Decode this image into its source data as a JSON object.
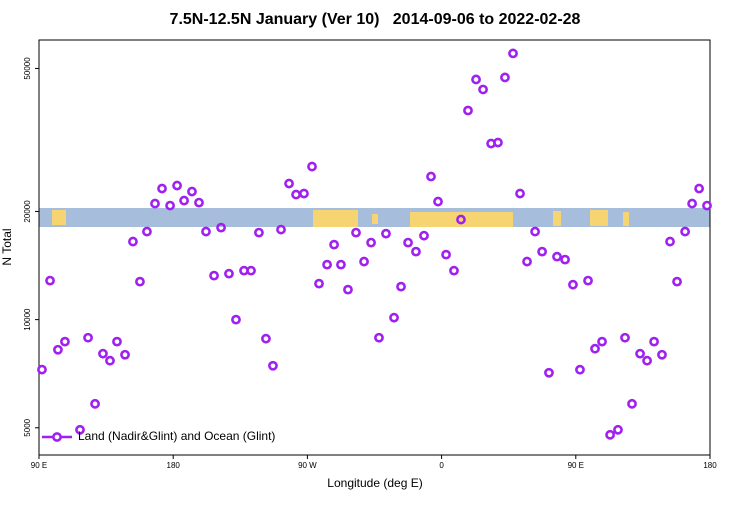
{
  "chart_data": {
    "type": "scatter",
    "title": "7.5N-12.5N January (Ver 10)   2014-09-06 to 2022-02-28",
    "xlabel": "Longitude (deg E)",
    "ylabel": "N Total",
    "xlim": [
      90,
      540
    ],
    "xticks": [
      {
        "value": 90,
        "label": "90 E"
      },
      {
        "value": 180,
        "label": "180"
      },
      {
        "value": 270,
        "label": "90 W"
      },
      {
        "value": 360,
        "label": "0"
      },
      {
        "value": 450,
        "label": "90 E"
      },
      {
        "value": 540,
        "label": "180"
      }
    ],
    "ylim": [
      4200,
      60000
    ],
    "yscale": "log",
    "yticks": [
      5000,
      10000,
      20000,
      50000
    ],
    "legend": "bottomleft",
    "x": [
      92,
      97.4,
      102.7,
      107.4,
      117.5,
      122.9,
      127.6,
      132.9,
      137.6,
      142.3,
      147.7,
      153,
      157.7,
      162.4,
      167.8,
      172.5,
      177.9,
      182.6,
      187.3,
      192.6,
      197.3,
      202,
      207.4,
      212.1,
      217.4,
      222.1,
      227.5,
      232.2,
      237.5,
      242.2,
      246.9,
      252.3,
      257.7,
      262.4,
      267.7,
      273.1,
      277.8,
      283.2,
      287.9,
      292.5,
      297.2,
      302.6,
      308,
      312.7,
      318,
      322.7,
      328.1,
      332.8,
      337.5,
      342.8,
      348.2,
      352.9,
      357.6,
      363,
      368.3,
      373,
      377.7,
      383.1,
      387.8,
      393.2,
      397.8,
      402.5,
      407.9,
      412.6,
      417.3,
      422.7,
      427.4,
      432,
      437.4,
      442.8,
      448.1,
      452.8,
      458.2,
      462.9,
      467.6,
      473,
      478.3,
      483,
      487.7,
      493.1,
      497.8,
      502.5,
      507.8,
      513.2,
      517.9,
      523.3,
      528,
      532.7,
      538
    ],
    "series": [
      {
        "name": "Land (Nadir&Glint) and Ocean (Glint)",
        "color": "#a020f0",
        "values": [
          7260,
          12840,
          8245,
          8685,
          4936,
          8905,
          5830,
          8040,
          7685,
          8685,
          7985,
          16490,
          12755,
          17580,
          21035,
          23160,
          20765,
          23610,
          21445,
          22720,
          21165,
          17580,
          13255,
          18030,
          13425,
          10000,
          13685,
          13685,
          17465,
          8850,
          7440,
          17805,
          23915,
          22285,
          22430,
          26665,
          12595,
          14225,
          16170,
          14225,
          12120,
          17465,
          14505,
          16380,
          8905,
          17350,
          10125,
          12355,
          16380,
          15460,
          17125,
          25015,
          21305,
          15165,
          13685,
          18985,
          38190,
          46600,
          43700,
          30900,
          31100,
          47200,
          55060,
          22430,
          14505,
          17580,
          15460,
          7115,
          14970,
          14690,
          12510,
          7255,
          12840,
          8300,
          8685,
          4780,
          4936,
          8905,
          5830,
          8040,
          7685,
          8685,
          7985,
          16490,
          12755,
          17580,
          21035,
          23160,
          20765
        ]
      }
    ]
  }
}
